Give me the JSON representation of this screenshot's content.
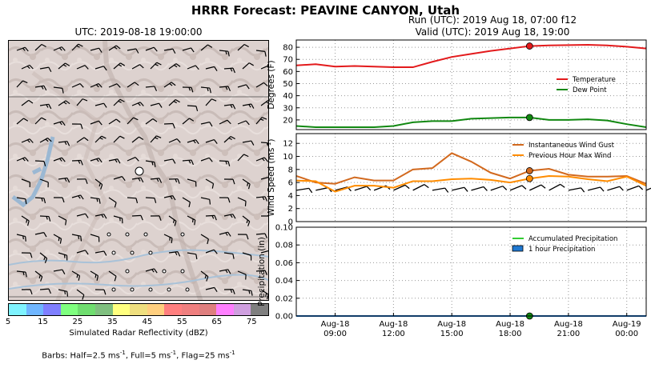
{
  "title": "HRRR Forecast: PEAVINE CANYON, Utah",
  "map_title": "UTC: 2019-08-18 19:00:00",
  "run_line": "Run (UTC): 2019 Aug 18, 07:00 f12",
  "valid_line": "Valid (UTC): 2019 Aug 18, 19:00",
  "colorbar": {
    "label": "Simulated Radar Reflectivity (dBZ)",
    "ticks": [
      "5",
      "15",
      "25",
      "35",
      "45",
      "55",
      "65",
      "75"
    ],
    "colors": [
      "#7ff3ff",
      "#6fb6ff",
      "#7f7fff",
      "#7fff7f",
      "#6fdd6f",
      "#7fbf7f",
      "#ffff7f",
      "#efdf7f",
      "#ffcf7f",
      "#ff7f7f",
      "#ef7f7f",
      "#df7f7f",
      "#ff7fff",
      "#cf9fdf",
      "#7f7f7f"
    ]
  },
  "barb_note": {
    "prefix": "Barbs: Half=2.5 ms",
    "sup1": "-1",
    "mid1": ", Full=5 ms",
    "sup2": "-1",
    "mid2": ", Flag=25 ms",
    "sup3": "-1"
  },
  "chart_data": [
    {
      "type": "line",
      "ylabel": "Degrees (F)",
      "yticks": [
        20,
        30,
        40,
        50,
        60,
        70,
        80
      ],
      "ylim": [
        12,
        86
      ],
      "x": [
        7,
        8,
        9,
        10,
        11,
        12,
        13,
        14,
        15,
        16,
        17,
        18,
        19,
        20,
        21,
        22,
        23,
        24,
        25
      ],
      "series": [
        {
          "name": "Temperature",
          "color": "#e31a1c",
          "values": [
            65,
            66,
            64,
            64.5,
            64,
            63.5,
            63.5,
            68,
            72,
            74.5,
            77,
            79,
            81,
            81.5,
            81.8,
            82,
            81.5,
            80.5,
            79
          ]
        },
        {
          "name": "Dew Point",
          "color": "#118811",
          "values": [
            15,
            14,
            14,
            14,
            14,
            15,
            18,
            19,
            19,
            21,
            21.5,
            22,
            22,
            20,
            20,
            20.5,
            19.5,
            16.5,
            14
          ]
        }
      ],
      "marker": {
        "x": 19,
        "series": [
          81,
          22
        ]
      },
      "legend": "right"
    },
    {
      "type": "line",
      "ylabel": "Wind Speed (ms",
      "ylabel_sup": "-1",
      "ylabel_end": ")",
      "yticks": [
        0,
        2,
        4,
        6,
        8,
        10,
        12
      ],
      "ylim": [
        0,
        13.5
      ],
      "x": [
        7,
        8,
        9,
        10,
        11,
        12,
        13,
        14,
        15,
        16,
        17,
        18,
        19,
        20,
        21,
        22,
        23,
        24,
        25
      ],
      "series": [
        {
          "name": "Instantaneous Wind Gust",
          "color": "#d2691e",
          "values": [
            7,
            6,
            5.8,
            6.8,
            6.3,
            6.3,
            8,
            8.2,
            10.5,
            9.2,
            7.5,
            6.6,
            7.8,
            8.1,
            7.2,
            6.9,
            6.9,
            7,
            5.8
          ]
        },
        {
          "name": "Previous Hour Max Wind",
          "color": "#ff8c00",
          "values": [
            6.3,
            6.2,
            4.6,
            5.5,
            5.5,
            5.2,
            6.2,
            6.2,
            6.5,
            6.6,
            6.4,
            6,
            6.6,
            7,
            6.9,
            6.5,
            6.2,
            6.9,
            5.5
          ]
        }
      ],
      "marker": {
        "x": 19,
        "series": [
          7.8,
          6.6
        ]
      },
      "barbs_y": 4.8,
      "legend": "top-right"
    },
    {
      "type": "line",
      "ylabel": "Precipitation (in)",
      "yticks": [
        "0.00",
        "0.02",
        "0.04",
        "0.06",
        "0.08",
        "0.10"
      ],
      "ylim": [
        0,
        0.1
      ],
      "x": [
        7,
        25
      ],
      "series": [
        {
          "name": "Accumulated Precipitation",
          "color": "#33cc33",
          "values": [
            0,
            0
          ]
        },
        {
          "name": "1 hour Precipitation",
          "color": "#1f78d1",
          "values": [
            0,
            0
          ]
        }
      ],
      "marker": {
        "x": 19,
        "series": [
          0
        ]
      },
      "legend": "top-right"
    }
  ],
  "x_axis": {
    "ticks": [
      {
        "x": 9,
        "date": "Aug-18",
        "time": "09:00"
      },
      {
        "x": 12,
        "date": "Aug-18",
        "time": "12:00"
      },
      {
        "x": 15,
        "date": "Aug-18",
        "time": "15:00"
      },
      {
        "x": 18,
        "date": "Aug-18",
        "time": "18:00"
      },
      {
        "x": 21,
        "date": "Aug-18",
        "time": "21:00"
      },
      {
        "x": 24,
        "date": "Aug-19",
        "time": "00:00"
      }
    ]
  }
}
